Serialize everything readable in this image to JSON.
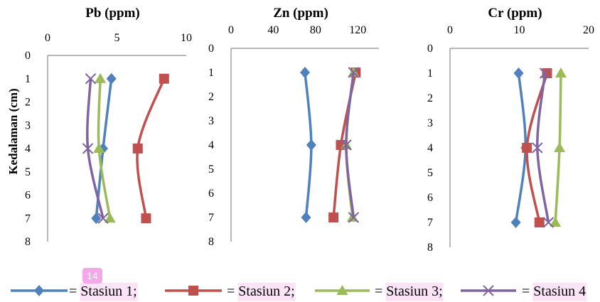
{
  "y_axis_label": "Kedalaman (cm)",
  "badge": "14",
  "legend": {
    "entries": [
      {
        "prefix": "= ",
        "label": "Stasiun 1",
        "suffix": ";",
        "series_index": 0
      },
      {
        "prefix": "= ",
        "label": "Stasiun 2",
        "suffix": ";",
        "series_index": 1
      },
      {
        "prefix": "= ",
        "label": "Stasiun 3",
        "suffix": ";",
        "series_index": 2
      },
      {
        "prefix": "= ",
        "label": "Stasiun 4",
        "suffix": "",
        "series_index": 3
      }
    ],
    "highlight_color": "#fce4f8"
  },
  "series_style": [
    {
      "color": "#4f81bd",
      "marker": "diamond"
    },
    {
      "color": "#c0504d",
      "marker": "square"
    },
    {
      "color": "#9bbb59",
      "marker": "triangle"
    },
    {
      "color": "#8064a2",
      "marker": "x"
    }
  ],
  "chart_data": [
    {
      "type": "line",
      "title": "Pb (ppm)",
      "xlabel": "Pb (ppm)",
      "ylabel": "Kedalaman (cm)",
      "xlim": [
        0,
        10
      ],
      "xticks": [
        0,
        5,
        10
      ],
      "ylim": [
        0,
        8
      ],
      "yticks": [
        0,
        1,
        2,
        3,
        4,
        5,
        6,
        7,
        8
      ],
      "y_inverted": true,
      "x_axis_position": "top",
      "series": [
        {
          "name": "Stasiun 1",
          "depth": [
            1,
            4,
            7
          ],
          "values": [
            4.6,
            4.0,
            3.5
          ]
        },
        {
          "name": "Stasiun 2",
          "depth": [
            1,
            4,
            7
          ],
          "values": [
            8.4,
            6.5,
            7.1
          ]
        },
        {
          "name": "Stasiun 3",
          "depth": [
            1,
            4,
            7
          ],
          "values": [
            3.8,
            3.7,
            4.5
          ]
        },
        {
          "name": "Stasiun 4",
          "depth": [
            1,
            4,
            7
          ],
          "values": [
            3.1,
            2.9,
            4.0
          ]
        }
      ]
    },
    {
      "type": "line",
      "title": "Zn (ppm)",
      "xlabel": "Zn (ppm)",
      "ylabel": "Kedalaman (cm)",
      "xlim": [
        0,
        140
      ],
      "xticks": [
        0,
        40,
        80,
        120
      ],
      "ylim": [
        0,
        8
      ],
      "yticks": [
        0,
        1,
        2,
        3,
        4,
        5,
        6,
        7,
        8
      ],
      "y_inverted": true,
      "x_axis_position": "top",
      "series": [
        {
          "name": "Stasiun 1",
          "depth": [
            1,
            4,
            7
          ],
          "values": [
            70,
            76,
            71
          ]
        },
        {
          "name": "Stasiun 2",
          "depth": [
            1,
            4,
            7
          ],
          "values": [
            118,
            104,
            97
          ]
        },
        {
          "name": "Stasiun 3",
          "depth": [
            1,
            4,
            7
          ],
          "values": [
            116,
            109,
            115
          ]
        },
        {
          "name": "Stasiun 4",
          "depth": [
            1,
            4,
            7
          ],
          "values": [
            116,
            109,
            116
          ]
        }
      ]
    },
    {
      "type": "line",
      "title": "Cr (ppm)",
      "xlabel": "Cr (ppm)",
      "ylabel": "Kedalaman (cm)",
      "xlim": [
        0,
        20
      ],
      "xticks": [
        0,
        10,
        20
      ],
      "ylim": [
        0,
        8
      ],
      "yticks": [
        0,
        1,
        2,
        3,
        4,
        5,
        6,
        7,
        8
      ],
      "y_inverted": true,
      "x_axis_position": "top",
      "series": [
        {
          "name": "Stasiun 1",
          "depth": [
            1,
            4,
            7
          ],
          "values": [
            9.9,
            10.9,
            9.5
          ]
        },
        {
          "name": "Stasiun 2",
          "depth": [
            1,
            4,
            7
          ],
          "values": [
            14.0,
            11.1,
            12.9
          ]
        },
        {
          "name": "Stasiun 3",
          "depth": [
            1,
            4,
            7
          ],
          "values": [
            16.0,
            15.8,
            15.2
          ]
        },
        {
          "name": "Stasiun 4",
          "depth": [
            1,
            4,
            7
          ],
          "values": [
            13.7,
            12.6,
            14.2
          ]
        }
      ]
    }
  ]
}
